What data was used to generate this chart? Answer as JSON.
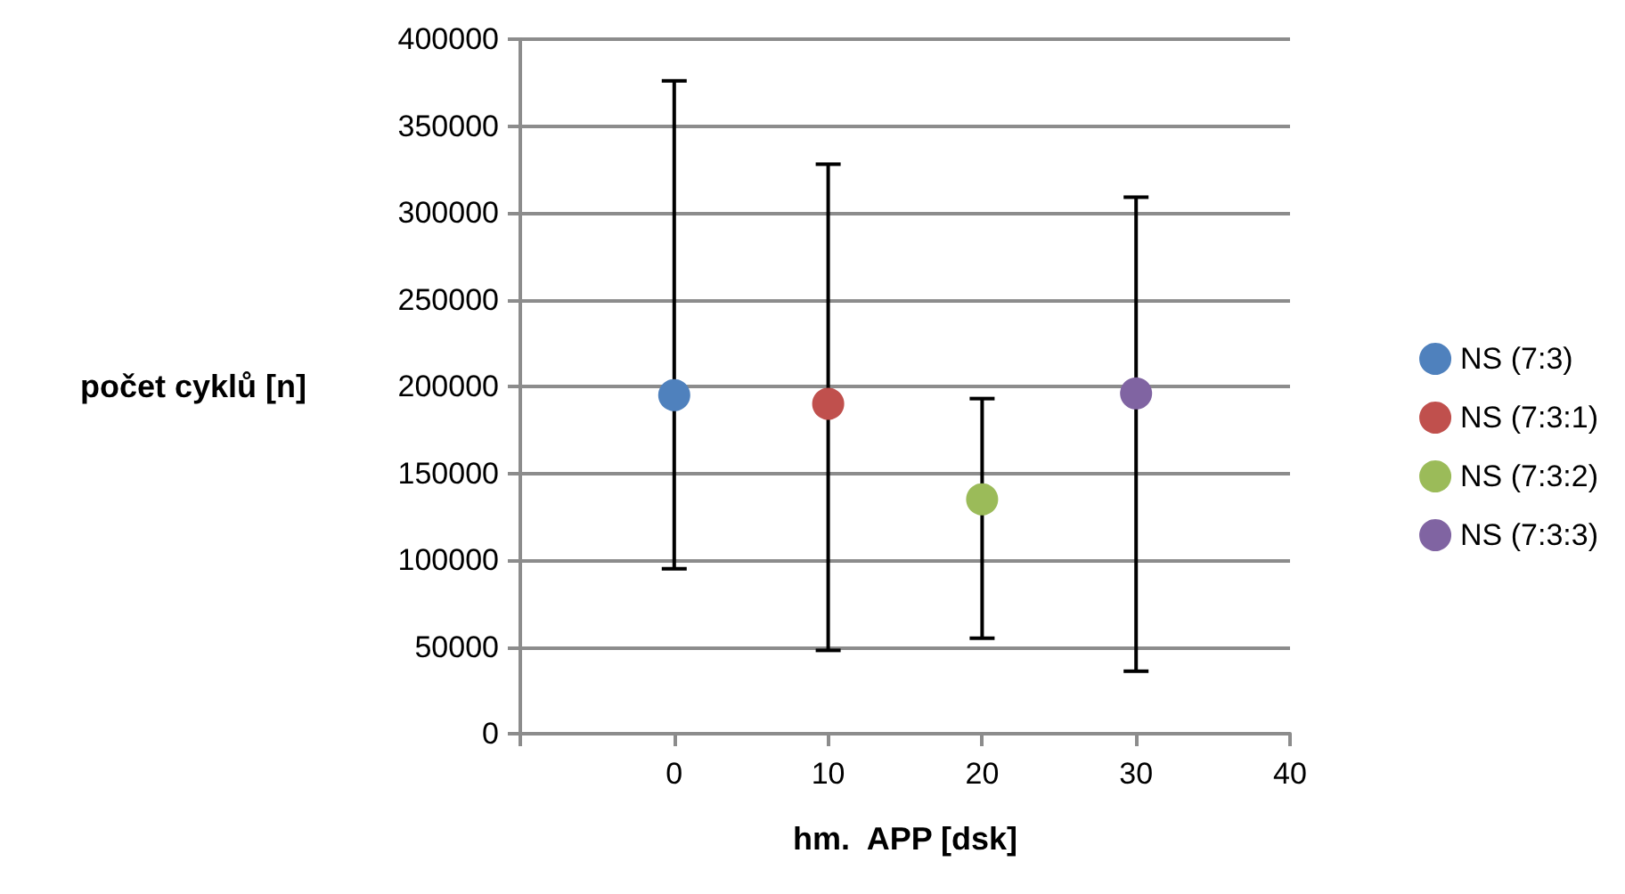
{
  "chart_data": {
    "type": "scatter",
    "xlabel": "hm.  APP [dsk]",
    "ylabel": "počet cyklů [n]",
    "xlim": [
      -10,
      40
    ],
    "xticks": [
      {
        "value": -10,
        "label": null
      },
      0,
      10,
      20,
      30,
      40
    ],
    "ylim": [
      0,
      400000
    ],
    "yticks": [
      0,
      50000,
      100000,
      150000,
      200000,
      250000,
      300000,
      350000,
      400000
    ],
    "grid": "y",
    "legend": "right",
    "marker": "circle",
    "series": [
      {
        "name": "NS (7:3)",
        "color": "#4f81bd",
        "x": [
          0
        ],
        "values": [
          195000
        ],
        "errors": [
          [
            95000,
            376000
          ]
        ]
      },
      {
        "name": "NS (7:3:1)",
        "color": "#c0504d",
        "x": [
          10
        ],
        "values": [
          190000
        ],
        "errors": [
          [
            48000,
            328000
          ]
        ]
      },
      {
        "name": "NS (7:3:2)",
        "color": "#9bbb59",
        "x": [
          20
        ],
        "values": [
          135000
        ],
        "errors": [
          [
            55000,
            193000
          ]
        ]
      },
      {
        "name": "NS (7:3:3)",
        "color": "#8064a2",
        "x": [
          30
        ],
        "values": [
          196000
        ],
        "errors": [
          [
            36000,
            309000
          ]
        ]
      }
    ]
  }
}
